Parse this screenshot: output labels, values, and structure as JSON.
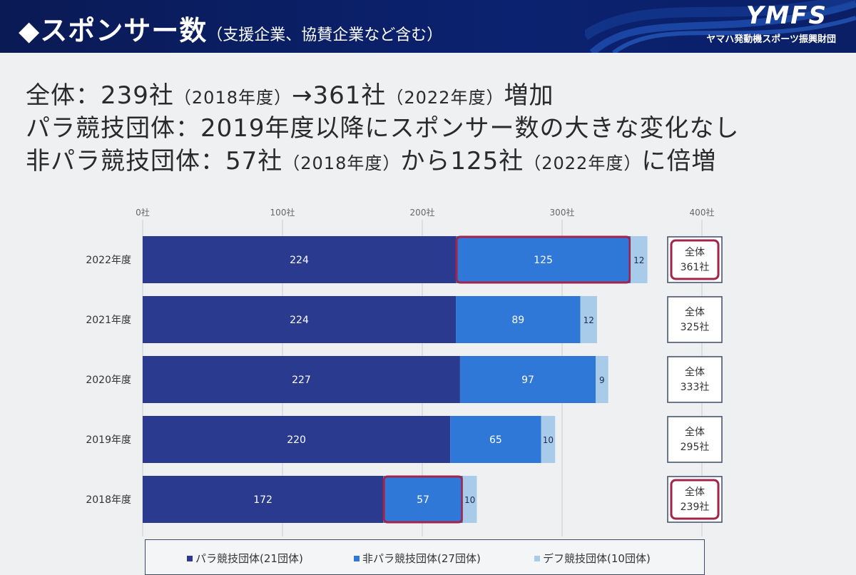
{
  "header": {
    "title": "◆スポンサー数",
    "subtitle": "（支援企業、協賛企業など含む）",
    "logo_text": "YMFS",
    "logo_subtext": "ヤマハ発動機スポーツ振興財団"
  },
  "summary": [
    {
      "a": "全体：239社",
      "b": "（2018年度）",
      "c": "→361社",
      "d": "（2022年度）",
      "e": "増加"
    },
    {
      "a": "パラ競技団体：2019年度以降にスポンサー数の大きな変化なし",
      "b": "",
      "c": "",
      "d": "",
      "e": ""
    },
    {
      "a": "非パラ競技団体：57社",
      "b": "（2018年度）",
      "c": "から125社",
      "d": "（2022年度）",
      "e": "に倍増"
    }
  ],
  "chart_data": {
    "type": "bar",
    "orientation": "horizontal",
    "stacked": true,
    "categories": [
      "2022年度",
      "2021年度",
      "2020年度",
      "2019年度",
      "2018年度"
    ],
    "series": [
      {
        "name": "パラ競技団体(21団体)",
        "color": "#2a3a8e",
        "values": [
          224,
          224,
          227,
          220,
          172
        ]
      },
      {
        "name": "非パラ競技団体(27団体)",
        "color": "#2f78d8",
        "values": [
          125,
          89,
          97,
          65,
          57
        ]
      },
      {
        "name": "デフ競技団体(10団体)",
        "color": "#a8cbea",
        "values": [
          12,
          12,
          9,
          10,
          10
        ]
      }
    ],
    "totals_label": "全体",
    "totals": [
      "361社",
      "325社",
      "333社",
      "295社",
      "239社"
    ],
    "highlighted_totals": [
      "2022年度",
      "2018年度"
    ],
    "highlighted_segments": [
      {
        "category": "2022年度",
        "series": "非パラ競技団体(27団体)"
      },
      {
        "category": "2018年度",
        "series": "非パラ競技団体(27団体)"
      }
    ],
    "xticks": [
      "0社",
      "100社",
      "200社",
      "300社",
      "400社"
    ],
    "xlim": [
      0,
      400
    ],
    "grid": true,
    "legend_position": "bottom",
    "highlight_color": "#a3234a"
  }
}
